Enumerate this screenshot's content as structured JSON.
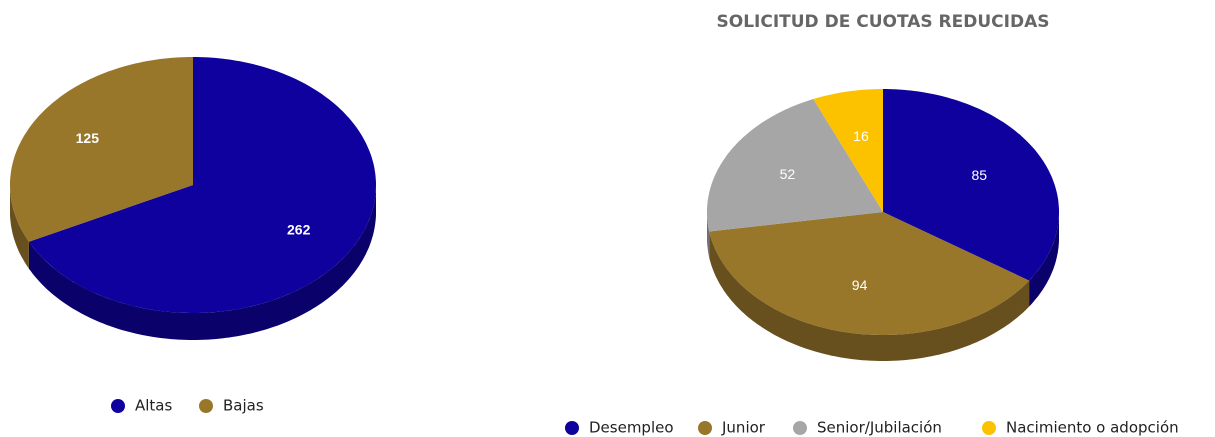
{
  "chart_data": [
    {
      "type": "pie",
      "categories": [
        "Altas",
        "Bajas"
      ],
      "values": [
        262,
        125
      ],
      "colors": [
        "#0f019e",
        "#98762a"
      ],
      "label_bold": true
    },
    {
      "type": "pie",
      "title": "SOLICITUD DE CUOTAS REDUCIDAS",
      "categories": [
        "Desempleo",
        "Junior",
        "Senior/Jubilación",
        "Nacimiento o adopción"
      ],
      "values": [
        85,
        94,
        52,
        16
      ],
      "colors": [
        "#0f019e",
        "#98762a",
        "#a6a6a6",
        "#fcc200"
      ],
      "label_bold": false
    }
  ]
}
